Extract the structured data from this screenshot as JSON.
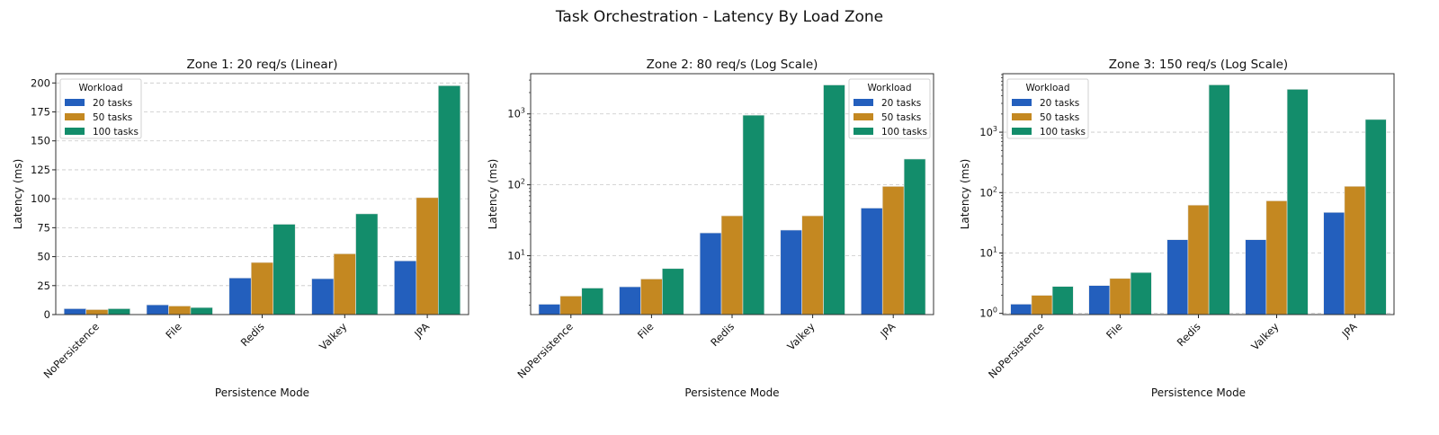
{
  "title": "Task Orchestration - Latency By Load Zone",
  "colors": {
    "20 tasks": "#235fbd",
    "50 tasks": "#c48821",
    "100 tasks": "#138d6b"
  },
  "chart_data": [
    {
      "type": "bar",
      "title": "Zone 1: 20 req/s (Linear)",
      "xlabel": "Persistence Mode",
      "ylabel": "Latency (ms)",
      "yscale": "linear",
      "ylim": [
        0,
        208
      ],
      "yticks": [
        0,
        25,
        50,
        75,
        100,
        125,
        150,
        175,
        200
      ],
      "grid": true,
      "legend_title": "Workload",
      "legend_position": "upper-left",
      "categories": [
        "NoPersistence",
        "File",
        "Redis",
        "Valkey",
        "JPA"
      ],
      "series": [
        {
          "name": "20 tasks",
          "values": [
            5.1,
            8.4,
            31.6,
            31,
            46.4
          ]
        },
        {
          "name": "50 tasks",
          "values": [
            4.3,
            7.4,
            45,
            52.5,
            101
          ]
        },
        {
          "name": "100 tasks",
          "values": [
            5.1,
            6.1,
            78,
            87,
            197.7
          ]
        }
      ]
    },
    {
      "type": "bar",
      "title": "Zone 2: 80 req/s (Log Scale)",
      "xlabel": "Persistence Mode",
      "ylabel": "Latency (ms)",
      "yscale": "log",
      "ylim": [
        1.48,
        3690
      ],
      "yticks": [
        10,
        100,
        1000
      ],
      "grid": true,
      "legend_title": "Workload",
      "legend_position": "upper-right",
      "categories": [
        "NoPersistence",
        "File",
        "Redis",
        "Valkey",
        "JPA"
      ],
      "series": [
        {
          "name": "20 tasks",
          "values": [
            2.07,
            3.65,
            21,
            23,
            47
          ]
        },
        {
          "name": "50 tasks",
          "values": [
            2.7,
            4.7,
            36.6,
            36.6,
            95
          ]
        },
        {
          "name": "100 tasks",
          "values": [
            3.5,
            6.6,
            960,
            2560,
            231
          ]
        }
      ]
    },
    {
      "type": "bar",
      "title": "Zone 3: 150 req/s (Log Scale)",
      "xlabel": "Persistence Mode",
      "ylabel": "Latency (ms)",
      "yscale": "log",
      "ylim": [
        0.955,
        9300
      ],
      "yticks": [
        1,
        10,
        100,
        1000
      ],
      "grid": true,
      "legend_title": "Workload",
      "legend_position": "upper-left",
      "categories": [
        "NoPersistence",
        "File",
        "Redis",
        "Valkey",
        "JPA"
      ],
      "series": [
        {
          "name": "20 tasks",
          "values": [
            1.42,
            2.89,
            16.6,
            16.6,
            47
          ]
        },
        {
          "name": "50 tasks",
          "values": [
            1.99,
            3.79,
            62,
            73,
            127
          ]
        },
        {
          "name": "100 tasks",
          "values": [
            2.79,
            4.75,
            6080,
            5130,
            1625
          ]
        }
      ]
    }
  ]
}
